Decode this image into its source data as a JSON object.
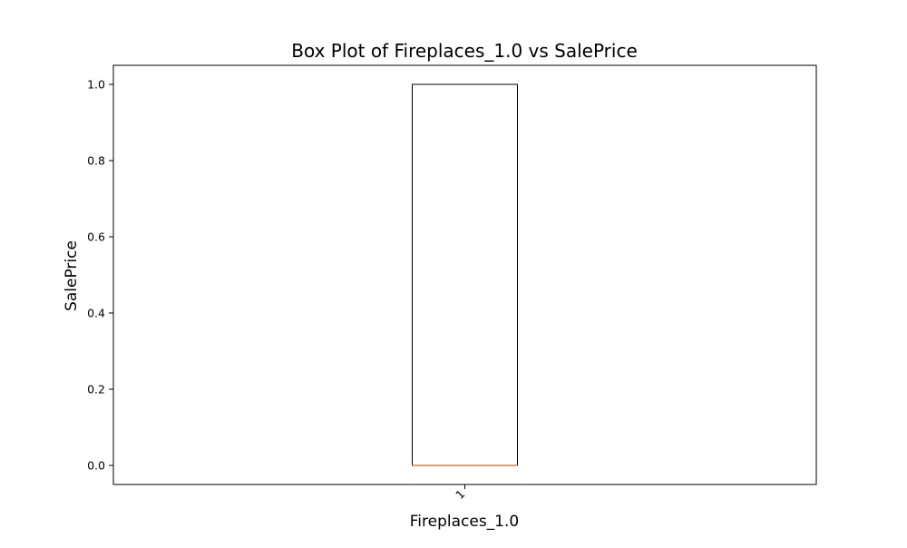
{
  "chart_data": {
    "type": "box",
    "title": "Box Plot of Fireplaces_1.0 vs SalePrice",
    "xlabel": "Fireplaces_1.0",
    "ylabel": "SalePrice",
    "categories": [
      "1"
    ],
    "boxes": [
      {
        "category": "1",
        "whisker_low": 0.0,
        "q1": 0.0,
        "median": 0.0,
        "q3": 1.0,
        "whisker_high": 1.0
      }
    ],
    "ylim": [
      -0.05,
      1.05
    ],
    "yticks": [
      0.0,
      0.2,
      0.4,
      0.6,
      0.8,
      1.0
    ],
    "ytick_labels": [
      "0.0",
      "0.2",
      "0.4",
      "0.6",
      "0.8",
      "1.0"
    ],
    "xtick_rotation_deg": -45,
    "grid": false,
    "colors": {
      "box_edge": "#000000",
      "median": "#e07c3e",
      "axes": "#000000"
    }
  }
}
